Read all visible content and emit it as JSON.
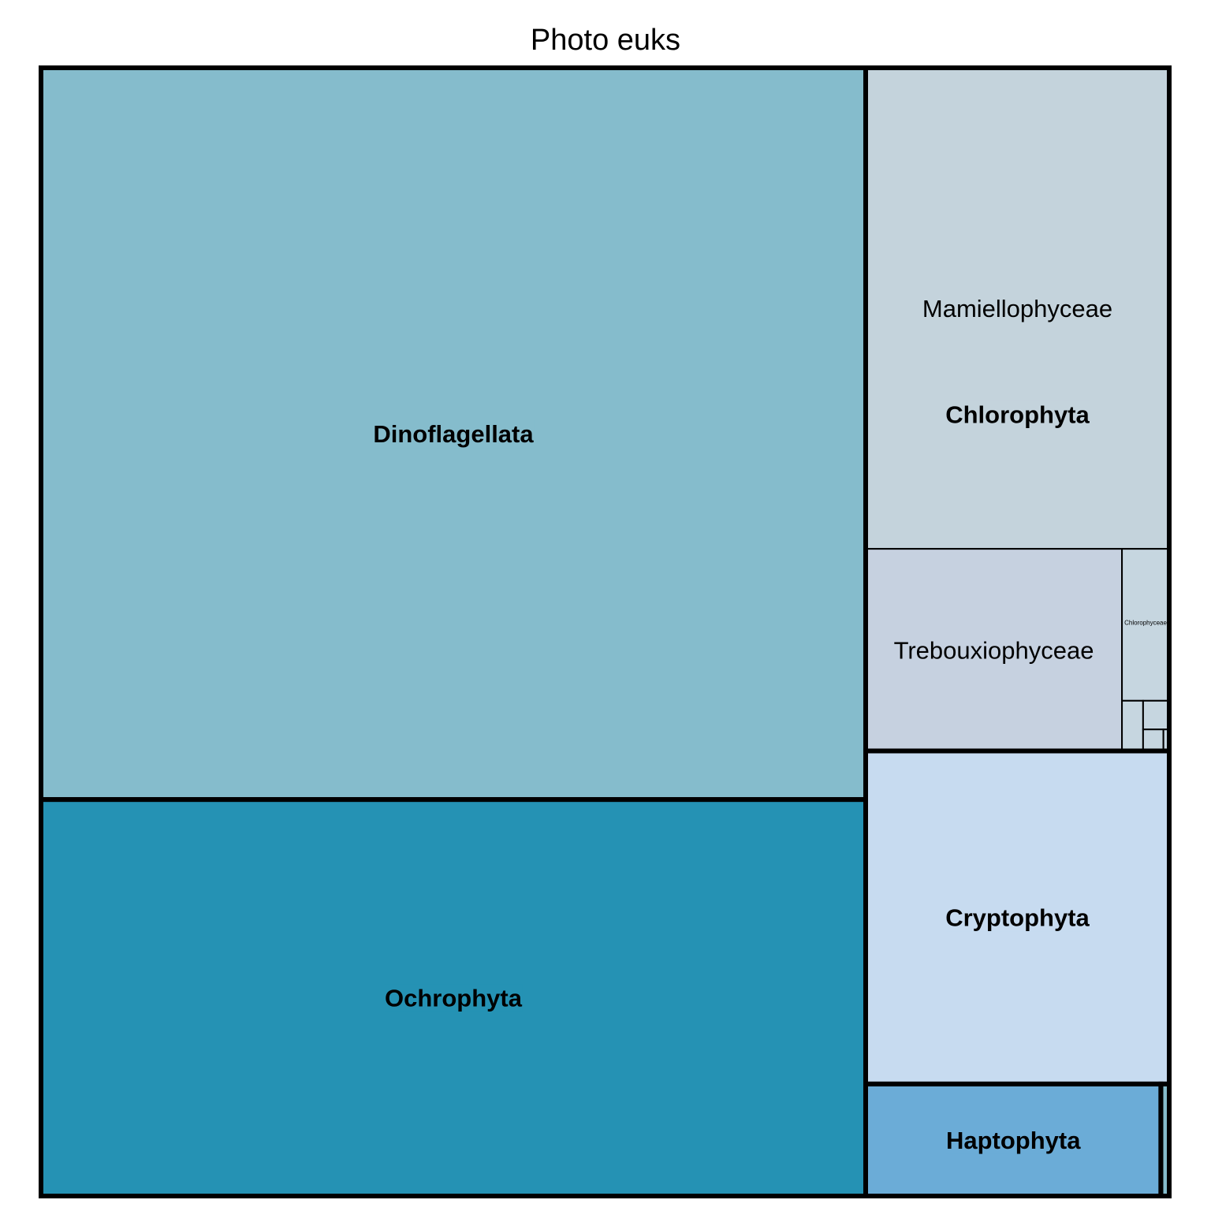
{
  "chart_data": {
    "type": "treemap",
    "title": "Photo euks",
    "groups": [
      {
        "name": "Dinoflagellata",
        "color": "#85bccc",
        "children": [
          {
            "name": "",
            "value": 967,
            "color": "#85bccc"
          }
        ]
      },
      {
        "name": "Ochrophyta",
        "color": "#2592b4",
        "children": [
          {
            "name": "",
            "value": 524,
            "color": "#2592b4"
          }
        ]
      },
      {
        "name": "Chlorophyta",
        "color": "#c4d3dc",
        "children": [
          {
            "name": "Mamiellophyceae",
            "value": 234,
            "color": "#c4d3dc"
          },
          {
            "name": "Trebouxiophyceae",
            "value": 83,
            "color": "#c6d1e0"
          },
          {
            "name": "Chlorophyceae",
            "value": 11.5,
            "color": "#c6d6e0"
          },
          {
            "name": "",
            "value": 1.7,
            "color": "#c6d6e0"
          },
          {
            "name": "",
            "value": 1.2,
            "color": "#c6d6e0"
          },
          {
            "name": "",
            "value": 0.7,
            "color": "#c6d6e0"
          },
          {
            "name": "",
            "value": 0.2,
            "color": "#c6d6e0"
          }
        ]
      },
      {
        "name": "Cryptophyta",
        "color": "#c7dbf0",
        "children": [
          {
            "name": "",
            "value": 162,
            "color": "#c7dbf0"
          }
        ]
      },
      {
        "name": "Haptophyta",
        "color": "#6bacd7",
        "children": [
          {
            "name": "",
            "value": 53,
            "color": "#6bacd7"
          }
        ]
      },
      {
        "name": "",
        "color": "#85bccc",
        "children": [
          {
            "name": "",
            "value": 1.5,
            "color": "#85bccc"
          }
        ]
      }
    ]
  }
}
